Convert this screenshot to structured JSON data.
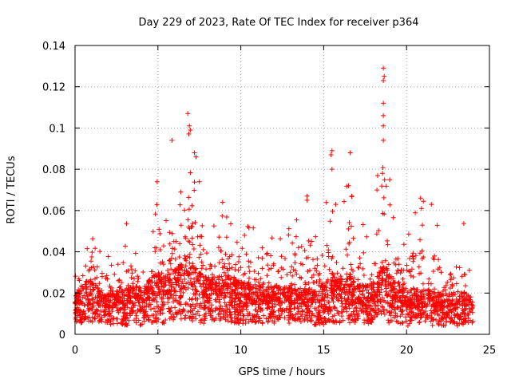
{
  "chart_data": {
    "type": "scatter",
    "title": "Day 229 of 2023, Rate Of TEC Index for receiver p364",
    "xlabel": "GPS time / hours",
    "ylabel": "ROTI / TECUs",
    "xlim": [
      0,
      25
    ],
    "ylim": [
      0,
      0.14
    ],
    "x_ticks": [
      0,
      5,
      10,
      15,
      20,
      25
    ],
    "x_tick_labels": [
      "0",
      "5",
      "10",
      "15",
      "20",
      "25"
    ],
    "y_ticks": [
      0,
      0.02,
      0.04,
      0.06,
      0.08,
      0.1,
      0.12,
      0.14
    ],
    "y_tick_labels": [
      "0",
      "0.02",
      "0.04",
      "0.06",
      "0.08",
      "0.1",
      "0.12",
      "0.14"
    ],
    "grid": true,
    "marker": "+",
    "marker_color": "#ff0000",
    "x_range_of_samples": [
      0,
      24
    ],
    "envelope": [
      {
        "x": 0.0,
        "low": 0.006,
        "typical": 0.013,
        "high": 0.03
      },
      {
        "x": 0.5,
        "low": 0.005,
        "typical": 0.016,
        "high": 0.045
      },
      {
        "x": 0.9,
        "low": 0.006,
        "typical": 0.018,
        "high": 0.056
      },
      {
        "x": 1.5,
        "low": 0.005,
        "typical": 0.014,
        "high": 0.045
      },
      {
        "x": 2.0,
        "low": 0.004,
        "typical": 0.013,
        "high": 0.04
      },
      {
        "x": 2.5,
        "low": 0.004,
        "typical": 0.014,
        "high": 0.043
      },
      {
        "x": 3.0,
        "low": 0.004,
        "typical": 0.015,
        "high": 0.057
      },
      {
        "x": 3.5,
        "low": 0.005,
        "typical": 0.016,
        "high": 0.045
      },
      {
        "x": 4.0,
        "low": 0.004,
        "typical": 0.015,
        "high": 0.043
      },
      {
        "x": 4.5,
        "low": 0.005,
        "typical": 0.018,
        "high": 0.047
      },
      {
        "x": 5.0,
        "low": 0.006,
        "typical": 0.02,
        "high": 0.072
      },
      {
        "x": 5.5,
        "low": 0.005,
        "typical": 0.019,
        "high": 0.065
      },
      {
        "x": 6.0,
        "low": 0.006,
        "typical": 0.022,
        "high": 0.072
      },
      {
        "x": 6.5,
        "low": 0.006,
        "typical": 0.024,
        "high": 0.078
      },
      {
        "x": 6.8,
        "low": 0.007,
        "typical": 0.026,
        "high": 0.107
      },
      {
        "x": 7.2,
        "low": 0.006,
        "typical": 0.022,
        "high": 0.09
      },
      {
        "x": 8.0,
        "low": 0.005,
        "typical": 0.018,
        "high": 0.055
      },
      {
        "x": 9.0,
        "low": 0.006,
        "typical": 0.02,
        "high": 0.064
      },
      {
        "x": 10.0,
        "low": 0.005,
        "typical": 0.017,
        "high": 0.05
      },
      {
        "x": 11.0,
        "low": 0.005,
        "typical": 0.016,
        "high": 0.057
      },
      {
        "x": 12.0,
        "low": 0.005,
        "typical": 0.016,
        "high": 0.057
      },
      {
        "x": 13.0,
        "low": 0.005,
        "typical": 0.015,
        "high": 0.052
      },
      {
        "x": 14.0,
        "low": 0.005,
        "typical": 0.015,
        "high": 0.067
      },
      {
        "x": 15.0,
        "low": 0.004,
        "typical": 0.016,
        "high": 0.057
      },
      {
        "x": 15.5,
        "low": 0.005,
        "typical": 0.02,
        "high": 0.089
      },
      {
        "x": 16.0,
        "low": 0.005,
        "typical": 0.018,
        "high": 0.06
      },
      {
        "x": 16.5,
        "low": 0.005,
        "typical": 0.02,
        "high": 0.088
      },
      {
        "x": 17.0,
        "low": 0.005,
        "typical": 0.016,
        "high": 0.055
      },
      {
        "x": 18.0,
        "low": 0.005,
        "typical": 0.016,
        "high": 0.06
      },
      {
        "x": 18.6,
        "low": 0.006,
        "typical": 0.024,
        "high": 0.129
      },
      {
        "x": 19.2,
        "low": 0.005,
        "typical": 0.017,
        "high": 0.06
      },
      {
        "x": 20.0,
        "low": 0.004,
        "typical": 0.014,
        "high": 0.05
      },
      {
        "x": 20.8,
        "low": 0.005,
        "typical": 0.015,
        "high": 0.066
      },
      {
        "x": 21.5,
        "low": 0.004,
        "typical": 0.014,
        "high": 0.063
      },
      {
        "x": 22.5,
        "low": 0.004,
        "typical": 0.013,
        "high": 0.04
      },
      {
        "x": 23.5,
        "low": 0.004,
        "typical": 0.014,
        "high": 0.057
      },
      {
        "x": 24.0,
        "low": 0.005,
        "typical": 0.013,
        "high": 0.04
      }
    ],
    "notable_points": [
      {
        "x": 6.8,
        "y": 0.107
      },
      {
        "x": 6.9,
        "y": 0.101
      },
      {
        "x": 6.95,
        "y": 0.099
      },
      {
        "x": 5.85,
        "y": 0.094
      },
      {
        "x": 7.2,
        "y": 0.088
      },
      {
        "x": 7.3,
        "y": 0.086
      },
      {
        "x": 15.5,
        "y": 0.089
      },
      {
        "x": 15.45,
        "y": 0.087
      },
      {
        "x": 15.5,
        "y": 0.08
      },
      {
        "x": 16.6,
        "y": 0.088
      },
      {
        "x": 16.5,
        "y": 0.072
      },
      {
        "x": 16.7,
        "y": 0.067
      },
      {
        "x": 18.6,
        "y": 0.129
      },
      {
        "x": 18.65,
        "y": 0.125
      },
      {
        "x": 18.6,
        "y": 0.123
      },
      {
        "x": 18.6,
        "y": 0.112
      },
      {
        "x": 18.6,
        "y": 0.106
      },
      {
        "x": 18.6,
        "y": 0.101
      },
      {
        "x": 18.6,
        "y": 0.094
      },
      {
        "x": 18.55,
        "y": 0.078
      },
      {
        "x": 14.0,
        "y": 0.067
      },
      {
        "x": 14.0,
        "y": 0.065
      },
      {
        "x": 20.85,
        "y": 0.066
      },
      {
        "x": 20.9,
        "y": 0.061
      },
      {
        "x": 21.5,
        "y": 0.063
      },
      {
        "x": 4.95,
        "y": 0.074
      },
      {
        "x": 7.5,
        "y": 0.074
      },
      {
        "x": 8.9,
        "y": 0.064
      }
    ]
  }
}
